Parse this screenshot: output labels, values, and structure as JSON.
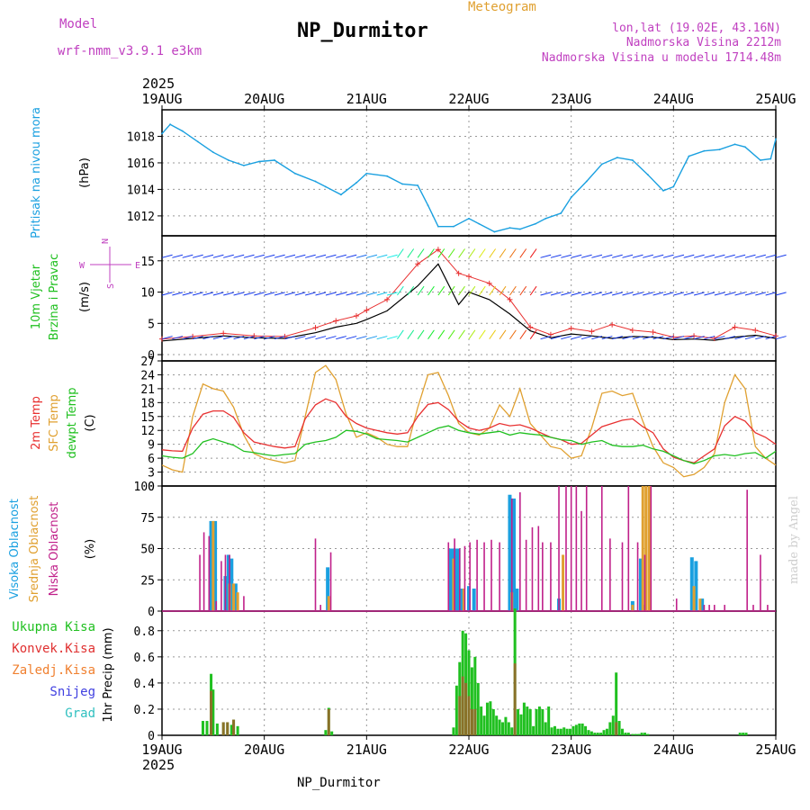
{
  "header": {
    "model_label": "Model",
    "model_name": "wrf-nmm_v3.9.1 e3km",
    "title": "NP_Durmitor",
    "meteogram_label": "Meteogram",
    "lonlat": "lon,lat (19.02E, 43.16N)",
    "altitude": "Nadmorska Visina 2212m",
    "model_altitude": "Nadmorska Visina u modelu 1714.48m",
    "footer_station": "NP_Durmitor",
    "credit": "made by Angel"
  },
  "colors": {
    "pressure": "#1aa0e0",
    "wind_speed": "#000000",
    "gust": "#e83030",
    "temp2m": "#e83030",
    "sfc_temp": "#e0a030",
    "dewpoint": "#20c020",
    "high_cloud": "#1aa0e0",
    "mid_cloud": "#e0a030",
    "low_cloud": "#c0208a",
    "total_precip": "#20c020",
    "conv_precip": "#e03030",
    "frozen_precip": "#f08030",
    "snow": "#4040e0",
    "hail": "#30c0c0",
    "model_text": "#c040c0"
  },
  "chart_data": [
    {
      "type": "line",
      "panel": "pressure",
      "ylabel": "Pritisak na nivou mora",
      "unit": "(hPa)",
      "ylim": [
        1010.5,
        1020
      ],
      "yticks": [
        1012,
        1014,
        1016,
        1018
      ],
      "x_dates": [
        "19AUG",
        "20AUG",
        "21AUG",
        "22AUG",
        "23AUG",
        "24AUG",
        "25AUG"
      ],
      "year": "2025",
      "x": [
        0,
        0.08,
        0.2,
        0.35,
        0.5,
        0.65,
        0.8,
        0.95,
        1.1,
        1.3,
        1.5,
        1.6,
        1.75,
        1.9,
        2.0,
        2.2,
        2.35,
        2.5,
        2.6,
        2.7,
        2.85,
        3.0,
        3.1,
        3.25,
        3.4,
        3.5,
        3.65,
        3.75,
        3.9,
        4.0,
        4.15,
        4.3,
        4.45,
        4.6,
        4.75,
        4.9,
        5.0,
        5.15,
        5.3,
        5.45,
        5.6,
        5.7,
        5.85,
        5.95,
        6.0
      ],
      "values": [
        1018.2,
        1018.9,
        1018.4,
        1017.6,
        1016.8,
        1016.2,
        1015.8,
        1016.1,
        1016.2,
        1015.2,
        1014.6,
        1014.2,
        1013.6,
        1014.5,
        1015.2,
        1015.0,
        1014.4,
        1014.3,
        1012.8,
        1011.2,
        1011.2,
        1011.8,
        1011.4,
        1010.8,
        1011.1,
        1011.0,
        1011.4,
        1011.8,
        1012.2,
        1013.4,
        1014.6,
        1015.9,
        1016.4,
        1016.2,
        1015.1,
        1013.9,
        1014.2,
        1016.5,
        1016.9,
        1017.0,
        1017.4,
        1017.2,
        1016.2,
        1016.3,
        1017.8
      ]
    },
    {
      "type": "line",
      "panel": "wind",
      "ylabel": "10m Vjetar",
      "ylabel2": "Brzina i Pravac",
      "unit": "(m/s)",
      "compass": {
        "n": "N",
        "s": "S",
        "e": "E",
        "w": "W"
      },
      "ylim": [
        -1,
        19
      ],
      "yticks": [
        0,
        5,
        10,
        15
      ],
      "series": [
        {
          "name": "wind speed",
          "x": [
            0,
            0.3,
            0.6,
            0.9,
            1.2,
            1.5,
            1.7,
            1.9,
            2.0,
            2.2,
            2.5,
            2.7,
            2.9,
            3.0,
            3.2,
            3.4,
            3.6,
            3.8,
            4.0,
            4.2,
            4.4,
            4.6,
            4.8,
            5.0,
            5.2,
            5.4,
            5.6,
            5.8,
            6.0
          ],
          "values": [
            2.2,
            2.6,
            3.0,
            2.7,
            2.6,
            3.5,
            4.4,
            5.0,
            5.6,
            7.0,
            11.0,
            14.5,
            8.0,
            10.0,
            8.8,
            6.5,
            3.8,
            2.7,
            3.3,
            3.0,
            2.6,
            2.9,
            2.8,
            2.4,
            2.5,
            2.3,
            2.8,
            3.1,
            2.6
          ]
        },
        {
          "name": "gust",
          "x": [
            0,
            0.3,
            0.6,
            0.9,
            1.2,
            1.5,
            1.7,
            1.9,
            2.0,
            2.2,
            2.5,
            2.7,
            2.9,
            3.0,
            3.2,
            3.4,
            3.6,
            3.8,
            4.0,
            4.2,
            4.4,
            4.6,
            4.8,
            5.0,
            5.2,
            5.4,
            5.6,
            5.8,
            6.0
          ],
          "values": [
            2.5,
            2.9,
            3.4,
            3.0,
            2.9,
            4.3,
            5.4,
            6.2,
            7.1,
            8.8,
            14.5,
            16.8,
            13.0,
            12.5,
            11.4,
            8.8,
            4.4,
            3.2,
            4.2,
            3.7,
            4.8,
            3.9,
            3.6,
            2.8,
            3.0,
            2.6,
            4.4,
            3.9,
            3.0
          ]
        }
      ]
    },
    {
      "type": "line",
      "panel": "temperature",
      "ylabel": "2m Temp",
      "ylabel2": "SFC Temp",
      "ylabel3": "dewpt Temp",
      "unit": "(C)",
      "ylim": [
        0,
        27
      ],
      "yticks": [
        0,
        3,
        6,
        9,
        12,
        15,
        18,
        21,
        24,
        27
      ],
      "x": [
        0,
        0.1,
        0.2,
        0.3,
        0.4,
        0.5,
        0.6,
        0.7,
        0.8,
        0.9,
        1.0,
        1.1,
        1.2,
        1.3,
        1.4,
        1.5,
        1.6,
        1.7,
        1.8,
        1.9,
        2.0,
        2.1,
        2.2,
        2.3,
        2.4,
        2.5,
        2.6,
        2.7,
        2.8,
        2.9,
        3.0,
        3.1,
        3.2,
        3.3,
        3.4,
        3.5,
        3.6,
        3.7,
        3.8,
        3.9,
        4.0,
        4.1,
        4.2,
        4.3,
        4.4,
        4.5,
        4.6,
        4.7,
        4.8,
        4.9,
        5.0,
        5.1,
        5.2,
        5.3,
        5.4,
        5.5,
        5.6,
        5.7,
        5.8,
        5.9,
        6.0
      ],
      "series": [
        {
          "name": "2m Temp",
          "values": [
            7.8,
            7.6,
            7.5,
            12.5,
            15.5,
            16.2,
            16.2,
            14.8,
            11.5,
            9.5,
            9.0,
            8.5,
            8.2,
            8.5,
            14.5,
            17.5,
            18.8,
            18.0,
            15.0,
            13.5,
            12.5,
            12.0,
            11.5,
            11.2,
            11.5,
            15.0,
            17.6,
            18.0,
            16.5,
            14.0,
            12.5,
            12.0,
            12.5,
            13.5,
            13.0,
            13.2,
            12.5,
            11.5,
            10.5,
            10.0,
            9.0,
            9.2,
            11.0,
            12.8,
            13.5,
            14.2,
            14.5,
            12.8,
            11.5,
            8.0,
            6.2,
            5.5,
            5.0,
            6.5,
            8.0,
            13.0,
            15.0,
            14.0,
            11.5,
            10.5,
            9.0
          ]
        },
        {
          "name": "SFC Temp",
          "values": [
            4.5,
            3.5,
            3.0,
            15.0,
            22.0,
            21.0,
            20.5,
            17.0,
            11.0,
            7.0,
            6.0,
            5.5,
            5.0,
            5.5,
            15.0,
            24.5,
            26.0,
            23.0,
            15.5,
            10.5,
            11.5,
            10.5,
            9.0,
            8.5,
            8.5,
            17.0,
            24.0,
            24.5,
            19.5,
            13.5,
            11.5,
            11.0,
            12.5,
            17.5,
            15.0,
            21.0,
            13.5,
            11.0,
            8.5,
            8.0,
            6.0,
            6.5,
            12.5,
            20.0,
            20.5,
            19.5,
            20.0,
            14.0,
            8.5,
            5.0,
            4.0,
            2.0,
            2.5,
            4.0,
            7.0,
            18.0,
            24.0,
            21.0,
            8.5,
            6.0,
            4.5
          ]
        },
        {
          "name": "dewpt Temp",
          "values": [
            6.5,
            6.2,
            6.0,
            7.0,
            9.5,
            10.2,
            9.5,
            8.8,
            7.5,
            7.2,
            6.8,
            6.5,
            6.8,
            7.0,
            9.0,
            9.5,
            9.8,
            10.5,
            12.0,
            11.8,
            11.2,
            10.2,
            10.0,
            9.8,
            9.5,
            10.5,
            11.5,
            12.5,
            13.0,
            12.0,
            11.5,
            11.2,
            11.5,
            11.8,
            11.0,
            11.5,
            11.2,
            11.0,
            10.5,
            10.0,
            9.8,
            9.0,
            9.5,
            9.8,
            8.8,
            8.5,
            8.5,
            8.8,
            8.0,
            7.5,
            6.5,
            5.5,
            4.8,
            5.5,
            6.5,
            6.8,
            6.5,
            7.0,
            7.2,
            6.0,
            7.5
          ]
        }
      ]
    },
    {
      "type": "bar",
      "panel": "cloud",
      "ylabel": "Visoka Oblacnost",
      "ylabel2": "Srednja Oblacnost",
      "ylabel3": "Niska Oblacnost",
      "unit": "(%)",
      "ylim": [
        0,
        100
      ],
      "yticks": [
        0,
        25,
        50,
        75,
        100
      ],
      "series": [
        {
          "name": "Visoka Oblacnost",
          "x": [
            0.48,
            0.52,
            0.62,
            0.65,
            0.68,
            0.72,
            1.62,
            2.82,
            2.84,
            2.87,
            2.9,
            2.93,
            3.0,
            3.05,
            3.4,
            3.44,
            3.47,
            3.88,
            4.6,
            4.68,
            5.18,
            5.22,
            5.28,
            4.72
          ],
          "values": [
            72,
            72,
            28,
            45,
            42,
            22,
            35,
            50,
            50,
            50,
            50,
            18,
            20,
            18,
            93,
            90,
            18,
            10,
            8,
            42,
            43,
            40,
            10,
            5
          ]
        },
        {
          "name": "Srednja Oblacnost",
          "x": [
            0.5,
            0.66,
            0.7,
            0.74,
            1.63,
            2.85,
            2.95,
            3.42,
            3.92,
            4.6,
            4.7,
            4.73,
            4.76,
            5.2,
            5.26
          ],
          "values": [
            72,
            22,
            22,
            15,
            12,
            42,
            18,
            15,
            45,
            5,
            100,
            100,
            100,
            20,
            10
          ]
        },
        {
          "name": "Niska Oblacnost",
          "x": [
            0.37,
            0.41,
            0.46,
            0.53,
            0.58,
            0.62,
            0.66,
            0.8,
            1.5,
            1.55,
            1.65,
            2.8,
            2.86,
            2.91,
            2.96,
            3.01,
            3.08,
            3.15,
            3.22,
            3.3,
            3.42,
            3.5,
            3.56,
            3.62,
            3.68,
            3.72,
            3.8,
            3.88,
            3.95,
            4.0,
            4.05,
            4.1,
            4.15,
            4.3,
            4.38,
            4.5,
            4.56,
            4.65,
            4.72,
            4.78,
            5.03,
            5.3,
            5.35,
            5.4,
            5.5,
            5.72,
            5.78,
            5.85,
            5.92
          ],
          "values": [
            45,
            63,
            60,
            8,
            40,
            45,
            45,
            12,
            58,
            5,
            47,
            55,
            58,
            50,
            52,
            55,
            57,
            55,
            57,
            55,
            90,
            95,
            57,
            67,
            68,
            55,
            55,
            100,
            100,
            100,
            100,
            80,
            100,
            100,
            58,
            55,
            100,
            55,
            45,
            100,
            10,
            5,
            5,
            5,
            5,
            97,
            5,
            45,
            5
          ]
        }
      ]
    },
    {
      "type": "bar",
      "panel": "precip",
      "ylabel": "1hr Precip (mm)",
      "ylim": [
        0,
        0.95
      ],
      "yticks": [
        0,
        0.2,
        0.4,
        0.6,
        0.8
      ],
      "legend": [
        "Ukupna Kisa",
        "Konvek.Kisa",
        "Zaledj.Kisa",
        "Snijeg",
        "Grad"
      ],
      "series": [
        {
          "name": "Ukupna Kisa",
          "x": [
            0.4,
            0.44,
            0.48,
            0.5,
            0.54,
            0.6,
            0.64,
            0.68,
            0.7,
            0.74,
            1.6,
            1.63,
            1.66,
            2.85,
            2.88,
            2.91,
            2.94,
            2.97,
            3.0,
            3.03,
            3.06,
            3.09,
            3.12,
            3.15,
            3.18,
            3.21,
            3.24,
            3.27,
            3.3,
            3.33,
            3.36,
            3.39,
            3.42,
            3.45,
            3.48,
            3.51,
            3.54,
            3.57,
            3.6,
            3.63,
            3.66,
            3.69,
            3.72,
            3.75,
            3.78,
            3.81,
            3.84,
            3.87,
            3.9,
            3.93,
            3.96,
            3.99,
            4.02,
            4.05,
            4.08,
            4.11,
            4.14,
            4.17,
            4.2,
            4.23,
            4.26,
            4.29,
            4.32,
            4.35,
            4.38,
            4.41,
            4.44,
            4.47,
            4.5,
            4.53,
            4.56,
            4.6,
            4.63,
            4.66,
            4.69,
            4.72,
            4.75,
            5.65,
            5.68,
            5.71
          ],
          "values": [
            0.11,
            0.11,
            0.47,
            0.35,
            0.09,
            0.1,
            0.1,
            0.08,
            0.12,
            0.07,
            0.04,
            0.21,
            0.03,
            0.06,
            0.38,
            0.56,
            0.8,
            0.78,
            0.65,
            0.52,
            0.6,
            0.4,
            0.22,
            0.15,
            0.25,
            0.26,
            0.2,
            0.15,
            0.12,
            0.1,
            0.14,
            0.1,
            0.06,
            0.97,
            0.2,
            0.16,
            0.25,
            0.22,
            0.2,
            0.07,
            0.2,
            0.22,
            0.2,
            0.1,
            0.22,
            0.06,
            0.07,
            0.05,
            0.05,
            0.06,
            0.05,
            0.05,
            0.07,
            0.08,
            0.09,
            0.09,
            0.07,
            0.04,
            0.03,
            0.02,
            0.02,
            0.02,
            0.04,
            0.05,
            0.1,
            0.15,
            0.48,
            0.11,
            0.05,
            0.02,
            0.02,
            0.01,
            0.01,
            0.01,
            0.02,
            0.02,
            0.01,
            0.02,
            0.02,
            0.02
          ]
        },
        {
          "name": "Konvek.Kisa",
          "x": [
            0.48,
            0.6,
            0.64,
            0.7,
            1.63,
            2.91,
            2.94,
            2.97,
            3.0,
            3.03,
            3.06,
            3.45,
            4.44
          ],
          "values": [
            0.34,
            0.1,
            0.1,
            0.12,
            0.2,
            0.3,
            0.45,
            0.4,
            0.3,
            0.2,
            0.2,
            0.55,
            0.1
          ]
        }
      ]
    }
  ]
}
